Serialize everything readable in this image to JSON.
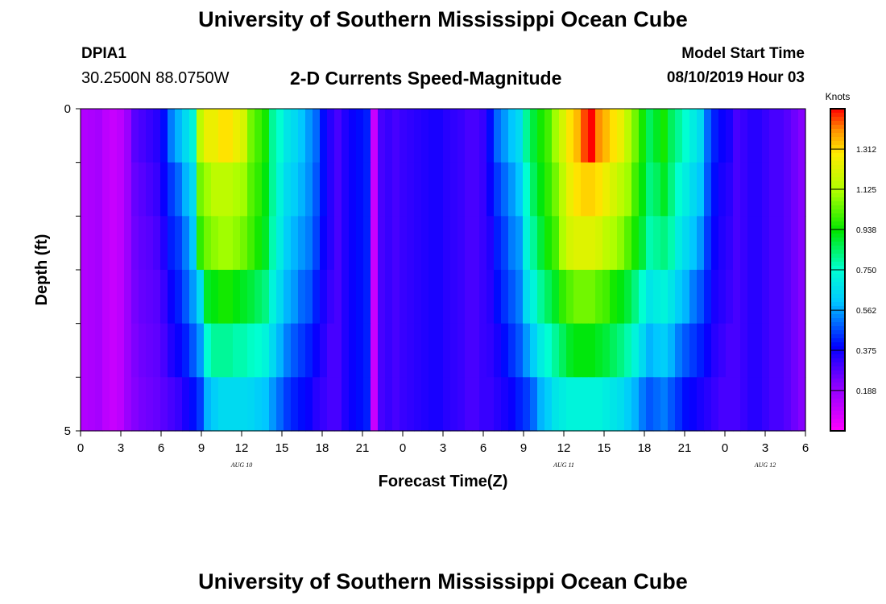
{
  "header": {
    "title": "University of Southern Mississippi Ocean Cube",
    "station_id": "DPIA1",
    "station_coords": "30.2500N 88.0750W",
    "chart_title": "2-D Currents Speed-Magnitude",
    "model_start_label": "Model Start Time",
    "model_start_value": "08/10/2019 Hour 03"
  },
  "footer": {
    "title": "University of Southern Mississippi Ocean Cube"
  },
  "chart_data": {
    "type": "heatmap",
    "title": "2-D Currents Speed-Magnitude",
    "xlabel": "Forecast Time(Z)",
    "ylabel": "Depth (ft)",
    "x_tick_labels": [
      "0",
      "3",
      "6",
      "9",
      "12",
      "15",
      "18",
      "21",
      "0",
      "3",
      "6",
      "9",
      "12",
      "15",
      "18",
      "21",
      "0",
      "3",
      "6"
    ],
    "y_tick_labels": [
      "0",
      "5"
    ],
    "y_range": [
      0,
      5
    ],
    "date_labels": [
      "AUG 10",
      "AUG 11",
      "AUG 12"
    ],
    "colorbar": {
      "label": "Knots",
      "ticks": [
        "0.188",
        "0.375",
        "0.562",
        "0.750",
        "0.938",
        "1.125",
        "1.312"
      ],
      "range": [
        0.0,
        1.5
      ]
    },
    "time_step_hours": 1,
    "depth_layers": 5,
    "speed_knots": [
      [
        0.14,
        0.15,
        0.16,
        0.12,
        0.1,
        0.12,
        0.18,
        0.28,
        0.3,
        0.32,
        0.34,
        0.4,
        0.52,
        0.58,
        0.65,
        0.72,
        1.15,
        1.25,
        1.25,
        1.3,
        1.3,
        1.25,
        1.2,
        1.05,
        1.0,
        0.95,
        0.8,
        0.75,
        0.68,
        0.65,
        0.6,
        0.55,
        0.5,
        0.4,
        0.34,
        0.3,
        0.35,
        0.38,
        0.4,
        0.42,
        0.1,
        0.3,
        0.32,
        0.3,
        0.32,
        0.33,
        0.34,
        0.35,
        0.36,
        0.36,
        0.34,
        0.33,
        0.32,
        0.3,
        0.3,
        0.32,
        0.4,
        0.5,
        0.55,
        0.6,
        0.65,
        0.8,
        0.88,
        0.95,
        1.0,
        1.1,
        1.2,
        1.3,
        1.35,
        1.45,
        1.5,
        1.4,
        1.35,
        1.3,
        1.25,
        1.15,
        1.05,
        0.95,
        0.85,
        0.9,
        0.95,
        0.85,
        0.8,
        0.75,
        0.7,
        0.65,
        0.5,
        0.42,
        0.38,
        0.36,
        0.3,
        0.32,
        0.34,
        0.34,
        0.32,
        0.3,
        0.3,
        0.28,
        0.25,
        0.22
      ],
      [
        0.14,
        0.15,
        0.16,
        0.12,
        0.1,
        0.12,
        0.18,
        0.26,
        0.28,
        0.3,
        0.32,
        0.38,
        0.45,
        0.5,
        0.58,
        0.65,
        1.05,
        1.1,
        1.15,
        1.15,
        1.15,
        1.12,
        1.1,
        1.02,
        0.98,
        0.92,
        0.8,
        0.72,
        0.65,
        0.62,
        0.58,
        0.54,
        0.48,
        0.4,
        0.34,
        0.3,
        0.35,
        0.38,
        0.4,
        0.42,
        0.1,
        0.3,
        0.32,
        0.3,
        0.32,
        0.33,
        0.34,
        0.35,
        0.36,
        0.36,
        0.34,
        0.33,
        0.32,
        0.3,
        0.3,
        0.32,
        0.38,
        0.45,
        0.5,
        0.55,
        0.6,
        0.75,
        0.85,
        0.92,
        0.98,
        1.05,
        1.15,
        1.25,
        1.3,
        1.32,
        1.32,
        1.3,
        1.25,
        1.2,
        1.15,
        1.1,
        1.0,
        0.92,
        0.82,
        0.85,
        0.9,
        0.82,
        0.75,
        0.7,
        0.65,
        0.6,
        0.48,
        0.4,
        0.36,
        0.34,
        0.3,
        0.32,
        0.34,
        0.34,
        0.32,
        0.3,
        0.3,
        0.28,
        0.25,
        0.22
      ],
      [
        0.14,
        0.15,
        0.16,
        0.12,
        0.1,
        0.12,
        0.18,
        0.25,
        0.27,
        0.28,
        0.3,
        0.35,
        0.42,
        0.45,
        0.52,
        0.6,
        0.98,
        1.05,
        1.08,
        1.1,
        1.1,
        1.08,
        1.05,
        1.0,
        0.95,
        0.9,
        0.78,
        0.7,
        0.62,
        0.58,
        0.55,
        0.52,
        0.46,
        0.38,
        0.34,
        0.3,
        0.35,
        0.38,
        0.4,
        0.42,
        0.1,
        0.3,
        0.32,
        0.3,
        0.32,
        0.33,
        0.34,
        0.35,
        0.36,
        0.36,
        0.34,
        0.33,
        0.32,
        0.3,
        0.3,
        0.32,
        0.35,
        0.42,
        0.46,
        0.52,
        0.55,
        0.72,
        0.8,
        0.88,
        0.95,
        1.0,
        1.12,
        1.2,
        1.22,
        1.22,
        1.22,
        1.2,
        1.15,
        1.12,
        1.08,
        1.02,
        0.95,
        0.88,
        0.78,
        0.8,
        0.82,
        0.78,
        0.7,
        0.65,
        0.6,
        0.55,
        0.45,
        0.38,
        0.35,
        0.33,
        0.3,
        0.32,
        0.34,
        0.34,
        0.32,
        0.3,
        0.3,
        0.28,
        0.25,
        0.22
      ],
      [
        0.14,
        0.15,
        0.16,
        0.12,
        0.1,
        0.12,
        0.18,
        0.24,
        0.26,
        0.27,
        0.28,
        0.32,
        0.38,
        0.42,
        0.48,
        0.55,
        0.65,
        0.9,
        0.92,
        0.95,
        0.95,
        0.92,
        0.9,
        0.88,
        0.85,
        0.82,
        0.72,
        0.65,
        0.58,
        0.55,
        0.5,
        0.48,
        0.42,
        0.36,
        0.32,
        0.3,
        0.35,
        0.38,
        0.4,
        0.42,
        0.1,
        0.3,
        0.32,
        0.3,
        0.32,
        0.33,
        0.34,
        0.35,
        0.36,
        0.36,
        0.34,
        0.33,
        0.32,
        0.3,
        0.3,
        0.32,
        0.34,
        0.4,
        0.44,
        0.48,
        0.52,
        0.65,
        0.72,
        0.8,
        0.85,
        0.9,
        0.98,
        1.02,
        1.05,
        1.05,
        1.05,
        1.02,
        1.0,
        0.95,
        0.92,
        0.88,
        0.82,
        0.75,
        0.68,
        0.7,
        0.72,
        0.68,
        0.62,
        0.58,
        0.52,
        0.48,
        0.42,
        0.36,
        0.34,
        0.32,
        0.3,
        0.32,
        0.34,
        0.34,
        0.32,
        0.3,
        0.3,
        0.28,
        0.25,
        0.22
      ],
      [
        0.14,
        0.15,
        0.16,
        0.12,
        0.1,
        0.12,
        0.18,
        0.23,
        0.25,
        0.26,
        0.27,
        0.3,
        0.35,
        0.38,
        0.42,
        0.48,
        0.55,
        0.75,
        0.8,
        0.8,
        0.8,
        0.78,
        0.78,
        0.76,
        0.75,
        0.72,
        0.65,
        0.58,
        0.52,
        0.48,
        0.45,
        0.42,
        0.38,
        0.34,
        0.3,
        0.3,
        0.35,
        0.38,
        0.4,
        0.42,
        0.1,
        0.3,
        0.32,
        0.3,
        0.32,
        0.33,
        0.34,
        0.35,
        0.36,
        0.36,
        0.34,
        0.33,
        0.32,
        0.3,
        0.3,
        0.32,
        0.33,
        0.36,
        0.4,
        0.44,
        0.48,
        0.55,
        0.62,
        0.7,
        0.75,
        0.8,
        0.85,
        0.9,
        0.92,
        0.92,
        0.92,
        0.9,
        0.88,
        0.85,
        0.82,
        0.78,
        0.72,
        0.65,
        0.58,
        0.6,
        0.62,
        0.58,
        0.52,
        0.48,
        0.45,
        0.42,
        0.38,
        0.34,
        0.32,
        0.3,
        0.3,
        0.32,
        0.34,
        0.34,
        0.32,
        0.3,
        0.3,
        0.28,
        0.25,
        0.22
      ],
      [
        0.14,
        0.15,
        0.16,
        0.12,
        0.1,
        0.12,
        0.18,
        0.22,
        0.24,
        0.25,
        0.26,
        0.28,
        0.3,
        0.32,
        0.36,
        0.4,
        0.45,
        0.58,
        0.62,
        0.65,
        0.65,
        0.65,
        0.65,
        0.64,
        0.62,
        0.6,
        0.55,
        0.5,
        0.45,
        0.42,
        0.4,
        0.38,
        0.34,
        0.32,
        0.3,
        0.3,
        0.35,
        0.38,
        0.4,
        0.42,
        0.1,
        0.3,
        0.32,
        0.3,
        0.32,
        0.33,
        0.34,
        0.35,
        0.36,
        0.36,
        0.34,
        0.33,
        0.32,
        0.3,
        0.3,
        0.32,
        0.32,
        0.34,
        0.36,
        0.38,
        0.42,
        0.45,
        0.5,
        0.58,
        0.62,
        0.68,
        0.7,
        0.72,
        0.72,
        0.72,
        0.72,
        0.72,
        0.7,
        0.68,
        0.66,
        0.62,
        0.58,
        0.52,
        0.48,
        0.5,
        0.52,
        0.48,
        0.44,
        0.4,
        0.38,
        0.36,
        0.34,
        0.32,
        0.3,
        0.3,
        0.3,
        0.32,
        0.34,
        0.34,
        0.32,
        0.3,
        0.3,
        0.28,
        0.25,
        0.22
      ]
    ]
  }
}
